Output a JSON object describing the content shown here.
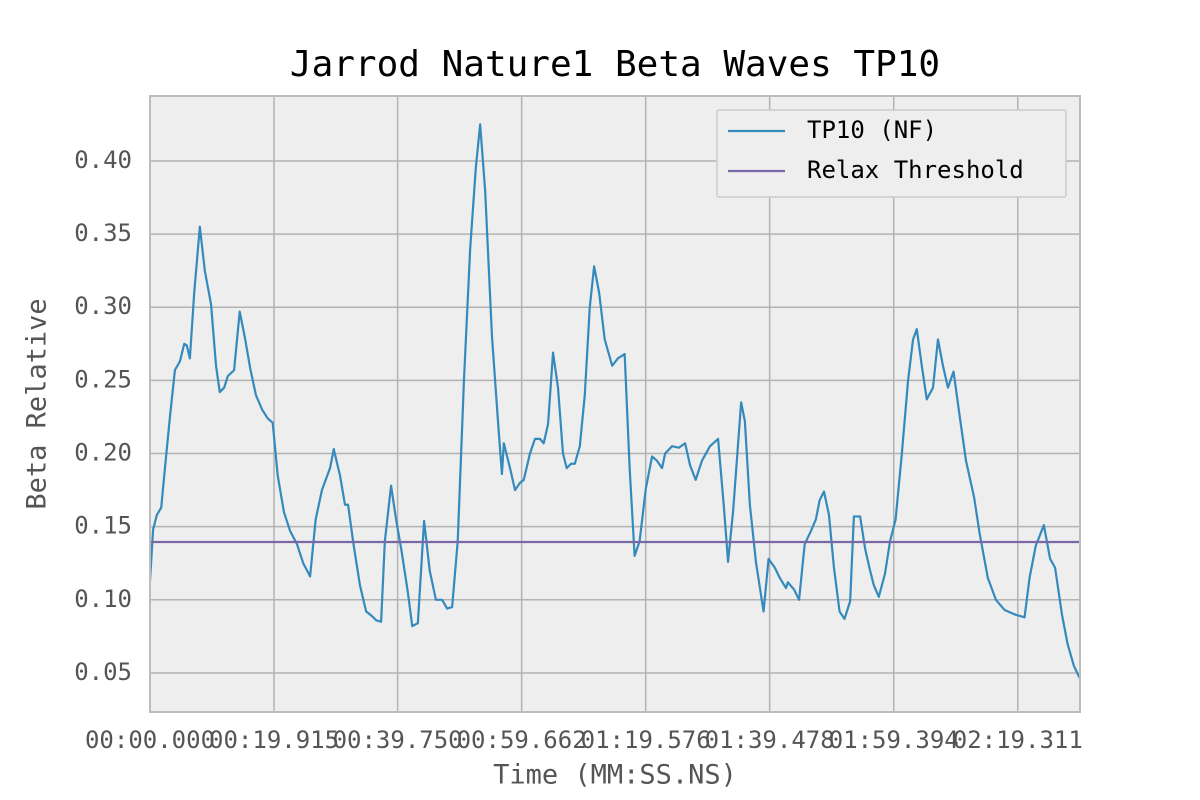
{
  "chart_data": {
    "type": "line",
    "title": "Jarrod Nature1 Beta Waves TP10",
    "x_label": "Time (MM:SS.NS)",
    "y_label": "Beta Relative",
    "grid": true,
    "legend_position": "upper right",
    "xlim": [
      0,
      149.3
    ],
    "ylim": [
      0.0233,
      0.4444
    ],
    "xticks": [
      {
        "value": 0,
        "label": "00:00.000"
      },
      {
        "value": 19.915,
        "label": "00:19.915"
      },
      {
        "value": 39.75,
        "label": "00:39.750"
      },
      {
        "value": 59.662,
        "label": "00:59.662"
      },
      {
        "value": 79.576,
        "label": "01:19.576"
      },
      {
        "value": 99.478,
        "label": "01:39.478"
      },
      {
        "value": 119.394,
        "label": "01:59.394"
      },
      {
        "value": 139.311,
        "label": "02:19.311"
      }
    ],
    "yticks": [
      0.05,
      {
        "value": 0.1,
        "label": "0.10"
      },
      0.15,
      {
        "value": 0.2,
        "label": "0.20"
      },
      0.25,
      {
        "value": 0.3,
        "label": "0.30"
      },
      0.35,
      {
        "value": 0.4,
        "label": "0.40"
      }
    ],
    "series": [
      {
        "name": "TP10 (NF)",
        "color": "#348abd",
        "x": [
          0,
          0.5,
          1.1,
          1.8,
          2.4,
          3.2,
          4.0,
          4.8,
          5.5,
          5.9,
          6.4,
          7.1,
          8.0,
          8.8,
          9.8,
          10.6,
          11.2,
          11.9,
          12.5,
          13.5,
          14.4,
          15.2,
          16.1,
          17.0,
          18.0,
          18.9,
          19.7,
          20.5,
          21.5,
          22.5,
          23.6,
          24.6,
          25.7,
          26.6,
          27.6,
          28.9,
          29.5,
          30.5,
          31.3,
          31.8,
          32.6,
          33.7,
          34.7,
          35.6,
          36.3,
          37.1,
          37.7,
          38.7,
          39.5,
          40.4,
          41.4,
          42.1,
          43.0,
          44.0,
          44.9,
          45.9,
          46.9,
          47.7,
          48.5,
          49.4,
          50.4,
          51.4,
          52.3,
          53.0,
          53.8,
          54.9,
          55.9,
          56.5,
          56.8,
          57.8,
          58.6,
          59.4,
          60.0,
          61.0,
          61.8,
          62.6,
          63.2,
          63.9,
          64.7,
          65.5,
          66.3,
          66.9,
          67.6,
          68.2,
          69.0,
          69.8,
          70.6,
          71.3,
          72.1,
          73.0,
          74.2,
          75.1,
          76.2,
          77.0,
          77.8,
          78.6,
          79.6,
          80.6,
          81.4,
          82.2,
          82.7,
          83.8,
          84.9,
          85.9,
          86.7,
          87.6,
          88.6,
          89.9,
          91.2,
          92.1,
          92.8,
          93.6,
          94.9,
          95.5,
          96.3,
          97.3,
          98.5,
          99.3,
          100.3,
          101.1,
          102.1,
          102.4,
          103.4,
          104.2,
          105.1,
          106.1,
          106.9,
          107.5,
          108.2,
          109.0,
          109.8,
          110.7,
          111.5,
          112.4,
          113.0,
          114.0,
          114.8,
          115.6,
          116.2,
          117.0,
          118.0,
          118.8,
          119.7,
          120.7,
          121.7,
          122.5,
          123.1,
          123.9,
          124.7,
          125.7,
          126.5,
          127.3,
          128.1,
          129.0,
          130.0,
          131.0,
          132.3,
          133.2,
          134.5,
          135.8,
          137.2,
          138.8,
          140.4,
          141.2,
          142.2,
          143.5,
          144.5,
          145.3,
          146.4,
          147.3,
          148.3,
          149.3
        ],
        "values": [
          0.113,
          0.148,
          0.158,
          0.163,
          0.19,
          0.225,
          0.257,
          0.263,
          0.275,
          0.274,
          0.265,
          0.31,
          0.355,
          0.325,
          0.302,
          0.26,
          0.242,
          0.245,
          0.253,
          0.257,
          0.297,
          0.28,
          0.258,
          0.24,
          0.23,
          0.224,
          0.221,
          0.185,
          0.16,
          0.147,
          0.138,
          0.125,
          0.116,
          0.155,
          0.175,
          0.19,
          0.203,
          0.185,
          0.165,
          0.165,
          0.14,
          0.11,
          0.092,
          0.089,
          0.086,
          0.085,
          0.14,
          0.178,
          0.155,
          0.133,
          0.105,
          0.082,
          0.084,
          0.154,
          0.12,
          0.1,
          0.1,
          0.094,
          0.095,
          0.14,
          0.25,
          0.34,
          0.395,
          0.425,
          0.38,
          0.28,
          0.22,
          0.186,
          0.207,
          0.19,
          0.175,
          0.18,
          0.182,
          0.2,
          0.21,
          0.21,
          0.207,
          0.22,
          0.269,
          0.245,
          0.2,
          0.19,
          0.193,
          0.193,
          0.205,
          0.24,
          0.3,
          0.328,
          0.31,
          0.278,
          0.26,
          0.265,
          0.268,
          0.19,
          0.13,
          0.14,
          0.176,
          0.198,
          0.195,
          0.19,
          0.2,
          0.205,
          0.204,
          0.207,
          0.192,
          0.182,
          0.195,
          0.205,
          0.21,
          0.165,
          0.126,
          0.16,
          0.235,
          0.222,
          0.165,
          0.125,
          0.092,
          0.128,
          0.122,
          0.115,
          0.108,
          0.112,
          0.107,
          0.1,
          0.138,
          0.147,
          0.155,
          0.168,
          0.174,
          0.158,
          0.122,
          0.092,
          0.087,
          0.099,
          0.157,
          0.157,
          0.135,
          0.12,
          0.11,
          0.102,
          0.118,
          0.14,
          0.155,
          0.2,
          0.25,
          0.278,
          0.285,
          0.26,
          0.237,
          0.245,
          0.278,
          0.26,
          0.245,
          0.256,
          0.225,
          0.195,
          0.17,
          0.145,
          0.115,
          0.1,
          0.093,
          0.09,
          0.088,
          0.115,
          0.137,
          0.151,
          0.128,
          0.122,
          0.09,
          0.07,
          0.055,
          0.046
        ]
      }
    ],
    "threshold": {
      "name": "Relax Threshold",
      "color": "#7a68a6",
      "value": 0.1395
    }
  }
}
